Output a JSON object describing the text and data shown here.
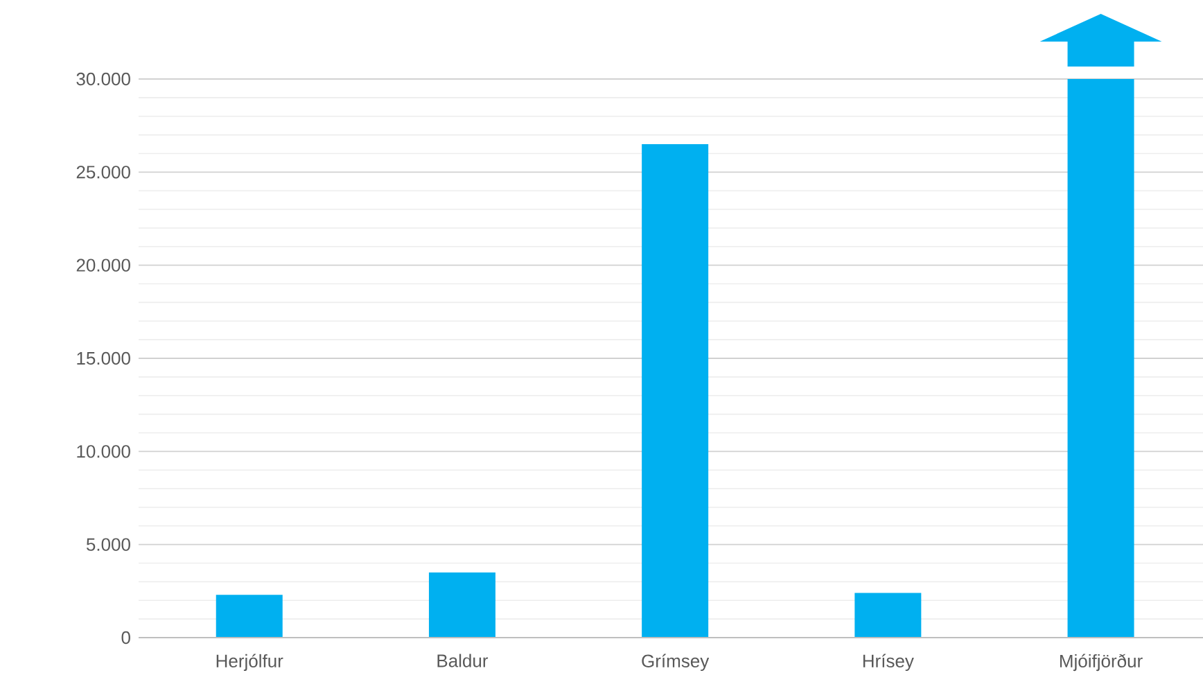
{
  "chart_data": {
    "type": "bar",
    "categories": [
      "Herjólfur",
      "Baldur",
      "Grímsey",
      "Hrísey",
      "Mjóifjörður"
    ],
    "values": [
      2300,
      3500,
      26500,
      2400,
      30000
    ],
    "color": "#00b0f0",
    "ylim": [
      0,
      30000
    ],
    "yticks": [
      {
        "value": 0,
        "label": "0"
      },
      {
        "value": 1000,
        "label": null
      },
      {
        "value": 2000,
        "label": null
      },
      {
        "value": 3000,
        "label": null
      },
      {
        "value": 4000,
        "label": null
      },
      {
        "value": 5000,
        "label": "5.000"
      },
      {
        "value": 6000,
        "label": null
      },
      {
        "value": 7000,
        "label": null
      },
      {
        "value": 8000,
        "label": null
      },
      {
        "value": 9000,
        "label": null
      },
      {
        "value": 10000,
        "label": "10.000"
      },
      {
        "value": 11000,
        "label": null
      },
      {
        "value": 12000,
        "label": null
      },
      {
        "value": 13000,
        "label": null
      },
      {
        "value": 14000,
        "label": null
      },
      {
        "value": 15000,
        "label": "15.000"
      },
      {
        "value": 16000,
        "label": null
      },
      {
        "value": 17000,
        "label": null
      },
      {
        "value": 18000,
        "label": null
      },
      {
        "value": 19000,
        "label": null
      },
      {
        "value": 20000,
        "label": "20.000"
      },
      {
        "value": 21000,
        "label": null
      },
      {
        "value": 22000,
        "label": null
      },
      {
        "value": 23000,
        "label": null
      },
      {
        "value": 24000,
        "label": null
      },
      {
        "value": 25000,
        "label": "25.000"
      },
      {
        "value": 26000,
        "label": null
      },
      {
        "value": 27000,
        "label": null
      },
      {
        "value": 28000,
        "label": null
      },
      {
        "value": 29000,
        "label": null
      },
      {
        "value": 30000,
        "label": "30.000"
      }
    ],
    "grid": "y"
  }
}
